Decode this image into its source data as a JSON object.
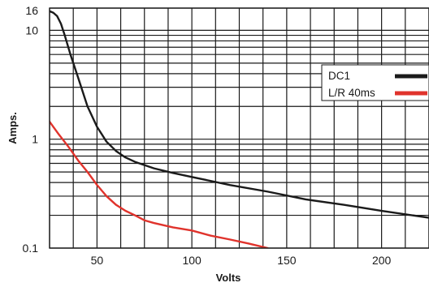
{
  "chart_data": {
    "type": "line",
    "title": "",
    "xlabel": "Volts",
    "ylabel": "Amps.",
    "xlim": [
      25,
      225
    ],
    "ylim": [
      0.1,
      16
    ],
    "y_scale": "log",
    "grid": true,
    "legend_position": "top-right",
    "x_ticks": [
      50,
      100,
      150,
      200
    ],
    "x_tick_labels": [
      "50",
      "100",
      "150",
      "200"
    ],
    "y_ticks": [
      0.1,
      1,
      10,
      16
    ],
    "y_tick_labels": [
      "0.1",
      "1",
      "10",
      "16"
    ],
    "series": [
      {
        "name": "DC1",
        "color": "#1a1a1a",
        "x": [
          25,
          27,
          29,
          31,
          33,
          36,
          40,
          45,
          50,
          55,
          60,
          65,
          70,
          80,
          90,
          100,
          120,
          140,
          160,
          180,
          200,
          225
        ],
        "y": [
          15,
          14.5,
          13.5,
          11.5,
          9,
          6,
          3.7,
          2,
          1.3,
          0.95,
          0.78,
          0.68,
          0.62,
          0.54,
          0.49,
          0.45,
          0.38,
          0.33,
          0.28,
          0.25,
          0.22,
          0.19
        ]
      },
      {
        "name": "L/R 40ms",
        "color": "#e0332c",
        "x": [
          25,
          30,
          35,
          40,
          45,
          50,
          55,
          60,
          65,
          70,
          75,
          80,
          90,
          100,
          110,
          120,
          130,
          140
        ],
        "y": [
          1.45,
          1.1,
          0.85,
          0.64,
          0.5,
          0.38,
          0.3,
          0.25,
          0.22,
          0.2,
          0.18,
          0.17,
          0.155,
          0.145,
          0.13,
          0.12,
          0.11,
          0.1
        ]
      }
    ]
  }
}
